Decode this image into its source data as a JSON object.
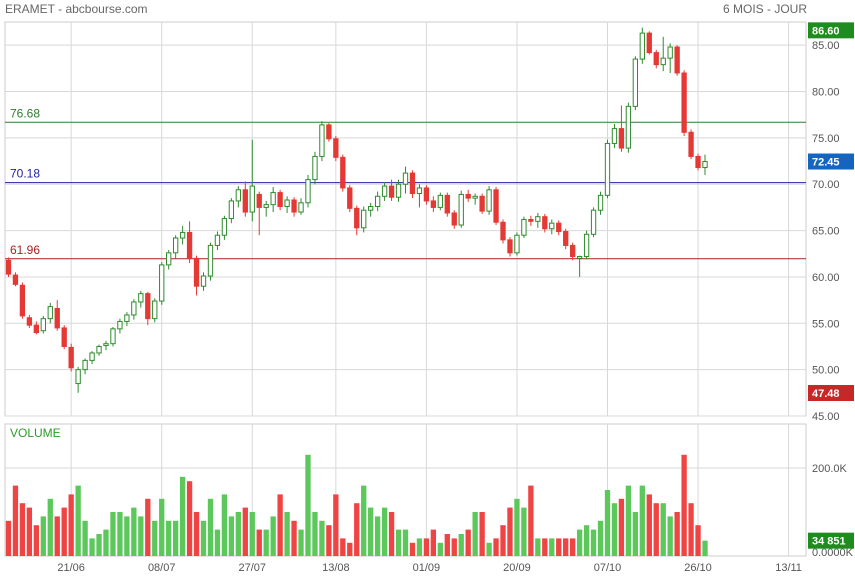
{
  "header": {
    "title": "ERAMET - abcbourse.com",
    "period": "6 MOIS - JOUR"
  },
  "chart_data": [
    {
      "type": "candlestick",
      "ylim": [
        45,
        87.5
      ],
      "y_ticks": [
        "45.00",
        "50.00",
        "55.00",
        "60.00",
        "65.00",
        "70.00",
        "75.00",
        "80.00",
        "85.00"
      ],
      "y_tick_values": [
        45,
        50,
        55,
        60,
        65,
        70,
        75,
        80,
        85
      ],
      "x_tick_labels": [
        "21/06",
        "08/07",
        "27/07",
        "13/08",
        "01/09",
        "20/09",
        "07/10",
        "26/10",
        "13/11"
      ],
      "x_tick_days": [
        9,
        22,
        35,
        47,
        60,
        73,
        86,
        99,
        112
      ],
      "total_days": 115,
      "grid": true,
      "colors": {
        "up_candle": "#2e8b2e",
        "down_candle": "#e53935",
        "up_fill": "#ffffff",
        "grid": "#d8d8d8"
      },
      "levels": [
        {
          "label": "76.68",
          "value": 76.68,
          "color": "#2e7d2e"
        },
        {
          "label": "70.18",
          "value": 70.18,
          "color": "#2222aa"
        },
        {
          "label": "61.96",
          "value": 61.96,
          "color": "#aa2222"
        }
      ],
      "tags": [
        {
          "text": "86.60",
          "value": 86.6,
          "color": "#1e8c1e"
        },
        {
          "text": "72.45",
          "value": 72.45,
          "color": "#1565c0"
        },
        {
          "text": "47.48",
          "value": 47.48,
          "color": "#c62828"
        }
      ],
      "ohlc": [
        [
          61.8,
          62.1,
          60.0,
          60.3
        ],
        [
          60.2,
          60.5,
          59.0,
          59.2
        ],
        [
          59.1,
          59.4,
          55.5,
          55.8
        ],
        [
          55.6,
          55.9,
          54.5,
          54.8
        ],
        [
          54.8,
          55.2,
          53.8,
          54.0
        ],
        [
          54.2,
          55.8,
          53.9,
          55.5
        ],
        [
          55.5,
          57.2,
          55.0,
          56.8
        ],
        [
          56.6,
          57.5,
          54.2,
          54.5
        ],
        [
          54.5,
          54.8,
          52.2,
          52.5
        ],
        [
          52.4,
          52.8,
          49.8,
          50.2
        ],
        [
          48.5,
          50.3,
          47.5,
          50.0
        ],
        [
          50.0,
          51.2,
          49.5,
          51.0
        ],
        [
          51.0,
          52.0,
          50.6,
          51.8
        ],
        [
          51.8,
          52.7,
          51.5,
          52.5
        ],
        [
          52.6,
          53.1,
          52.1,
          52.8
        ],
        [
          52.8,
          54.6,
          52.5,
          54.4
        ],
        [
          54.4,
          55.5,
          53.9,
          55.2
        ],
        [
          55.2,
          56.2,
          54.7,
          55.9
        ],
        [
          55.9,
          57.6,
          55.4,
          57.3
        ],
        [
          57.3,
          58.5,
          56.7,
          58.2
        ],
        [
          58.2,
          58.4,
          54.8,
          55.5
        ],
        [
          55.5,
          57.7,
          55.1,
          57.4
        ],
        [
          57.4,
          61.6,
          57.0,
          61.3
        ],
        [
          61.3,
          62.9,
          60.8,
          62.6
        ],
        [
          62.6,
          64.5,
          62.0,
          64.2
        ],
        [
          64.2,
          65.5,
          63.5,
          64.8
        ],
        [
          64.8,
          66.0,
          61.5,
          62.0
        ],
        [
          62.0,
          62.3,
          58.0,
          59.0
        ],
        [
          59.0,
          60.5,
          58.5,
          60.1
        ],
        [
          60.1,
          63.7,
          59.6,
          63.4
        ],
        [
          63.4,
          64.9,
          62.9,
          64.5
        ],
        [
          64.5,
          66.6,
          64.0,
          66.3
        ],
        [
          66.3,
          68.5,
          65.8,
          68.2
        ],
        [
          68.2,
          69.8,
          67.5,
          69.4
        ],
        [
          69.4,
          70.3,
          66.5,
          67.0
        ],
        [
          67.0,
          74.8,
          66.0,
          69.8
        ],
        [
          68.9,
          69.2,
          64.5,
          67.5
        ],
        [
          67.5,
          68.2,
          66.5,
          67.8
        ],
        [
          67.8,
          69.7,
          67.0,
          69.1
        ],
        [
          69.1,
          69.4,
          67.2,
          67.6
        ],
        [
          67.6,
          68.7,
          66.9,
          68.3
        ],
        [
          68.3,
          68.6,
          66.5,
          67.0
        ],
        [
          67.0,
          68.5,
          66.7,
          68.0
        ],
        [
          68.0,
          71.0,
          67.5,
          70.5
        ],
        [
          70.5,
          73.5,
          70.0,
          73.0
        ],
        [
          73.0,
          76.8,
          72.5,
          76.4
        ],
        [
          76.4,
          76.6,
          74.6,
          74.9
        ],
        [
          74.9,
          75.2,
          72.5,
          72.9
        ],
        [
          72.9,
          73.2,
          69.2,
          69.6
        ],
        [
          69.6,
          69.9,
          67.0,
          67.4
        ],
        [
          67.4,
          67.7,
          64.5,
          65.3
        ],
        [
          65.3,
          67.6,
          64.8,
          67.2
        ],
        [
          67.2,
          68.0,
          66.5,
          67.6
        ],
        [
          67.6,
          69.2,
          67.1,
          68.7
        ],
        [
          68.7,
          70.2,
          68.2,
          69.8
        ],
        [
          69.8,
          70.5,
          68.2,
          68.6
        ],
        [
          68.6,
          70.5,
          68.1,
          70.0
        ],
        [
          70.0,
          71.9,
          69.0,
          71.2
        ],
        [
          71.2,
          71.5,
          68.5,
          69.0
        ],
        [
          69.0,
          70.0,
          67.5,
          69.6
        ],
        [
          69.6,
          69.9,
          67.8,
          68.2
        ],
        [
          68.2,
          68.7,
          67.0,
          67.5
        ],
        [
          67.5,
          69.1,
          67.2,
          68.8
        ],
        [
          68.8,
          69.1,
          66.5,
          66.9
        ],
        [
          66.9,
          67.2,
          65.2,
          65.6
        ],
        [
          65.6,
          69.3,
          65.3,
          68.9
        ],
        [
          68.9,
          69.4,
          68.1,
          68.5
        ],
        [
          68.5,
          69.0,
          67.8,
          68.7
        ],
        [
          68.7,
          69.0,
          66.8,
          67.1
        ],
        [
          67.1,
          69.8,
          66.7,
          69.4
        ],
        [
          69.4,
          69.7,
          65.6,
          65.9
        ],
        [
          65.9,
          66.2,
          63.6,
          64.0
        ],
        [
          64.0,
          64.3,
          62.2,
          62.6
        ],
        [
          62.6,
          64.8,
          62.3,
          64.5
        ],
        [
          64.5,
          66.5,
          64.2,
          66.2
        ],
        [
          66.2,
          66.6,
          65.5,
          66.0
        ],
        [
          66.0,
          66.9,
          65.3,
          66.5
        ],
        [
          66.5,
          66.8,
          64.8,
          65.2
        ],
        [
          65.2,
          66.2,
          64.6,
          65.8
        ],
        [
          65.8,
          66.1,
          64.5,
          64.9
        ],
        [
          64.9,
          65.2,
          63.0,
          63.4
        ],
        [
          63.4,
          63.7,
          61.8,
          62.2
        ],
        [
          62.0,
          62.3,
          60.0,
          62.2
        ],
        [
          62.2,
          65.0,
          61.9,
          64.6
        ],
        [
          64.6,
          67.5,
          64.3,
          67.2
        ],
        [
          67.2,
          69.2,
          66.7,
          68.8
        ],
        [
          68.8,
          74.8,
          68.5,
          74.4
        ],
        [
          74.4,
          76.5,
          73.9,
          76.0
        ],
        [
          76.0,
          78.5,
          73.5,
          73.9
        ],
        [
          73.9,
          78.8,
          73.4,
          78.4
        ],
        [
          78.4,
          83.8,
          78.0,
          83.5
        ],
        [
          83.5,
          86.9,
          83.0,
          86.3
        ],
        [
          86.3,
          86.5,
          84.0,
          84.2
        ],
        [
          84.2,
          84.5,
          82.5,
          82.9
        ],
        [
          82.9,
          85.9,
          82.2,
          83.6
        ],
        [
          83.6,
          85.2,
          82.0,
          84.8
        ],
        [
          84.8,
          85.0,
          81.7,
          82.0
        ],
        [
          82.0,
          82.3,
          75.2,
          75.6
        ],
        [
          75.6,
          75.9,
          72.7,
          73.0
        ],
        [
          73.0,
          73.3,
          71.5,
          71.8
        ],
        [
          71.8,
          73.2,
          71.0,
          72.45
        ]
      ]
    },
    {
      "type": "bar",
      "title": "VOLUME",
      "ylim": [
        0,
        300000
      ],
      "y_ticks": [
        "0.0000K",
        "200.0K"
      ],
      "y_tick_values": [
        0,
        200000
      ],
      "tag": {
        "text": "34 851",
        "value": 34851,
        "color": "#1e8c1e"
      },
      "values": [
        80000,
        160000,
        120000,
        110000,
        70000,
        90000,
        130000,
        90000,
        110000,
        140000,
        160000,
        80000,
        40000,
        50000,
        60000,
        100000,
        100000,
        90000,
        110000,
        90000,
        130000,
        80000,
        130000,
        80000,
        80000,
        180000,
        170000,
        100000,
        80000,
        130000,
        60000,
        140000,
        90000,
        100000,
        110000,
        100000,
        60000,
        60000,
        90000,
        140000,
        100000,
        80000,
        60000,
        230000,
        100000,
        80000,
        70000,
        140000,
        40000,
        30000,
        120000,
        160000,
        110000,
        90000,
        110000,
        100000,
        60000,
        60000,
        30000,
        40000,
        40000,
        60000,
        30000,
        50000,
        40000,
        50000,
        60000,
        100000,
        100000,
        30000,
        40000,
        70000,
        110000,
        130000,
        110000,
        160000,
        40000,
        40000,
        40000,
        40000,
        40000,
        40000,
        60000,
        70000,
        60000,
        80000,
        150000,
        120000,
        130000,
        160000,
        100000,
        160000,
        140000,
        120000,
        120000,
        90000,
        100000,
        230000,
        120000,
        70000,
        34851
      ],
      "colors": {
        "up": "#5cc85c",
        "down": "#ee4444"
      }
    }
  ]
}
